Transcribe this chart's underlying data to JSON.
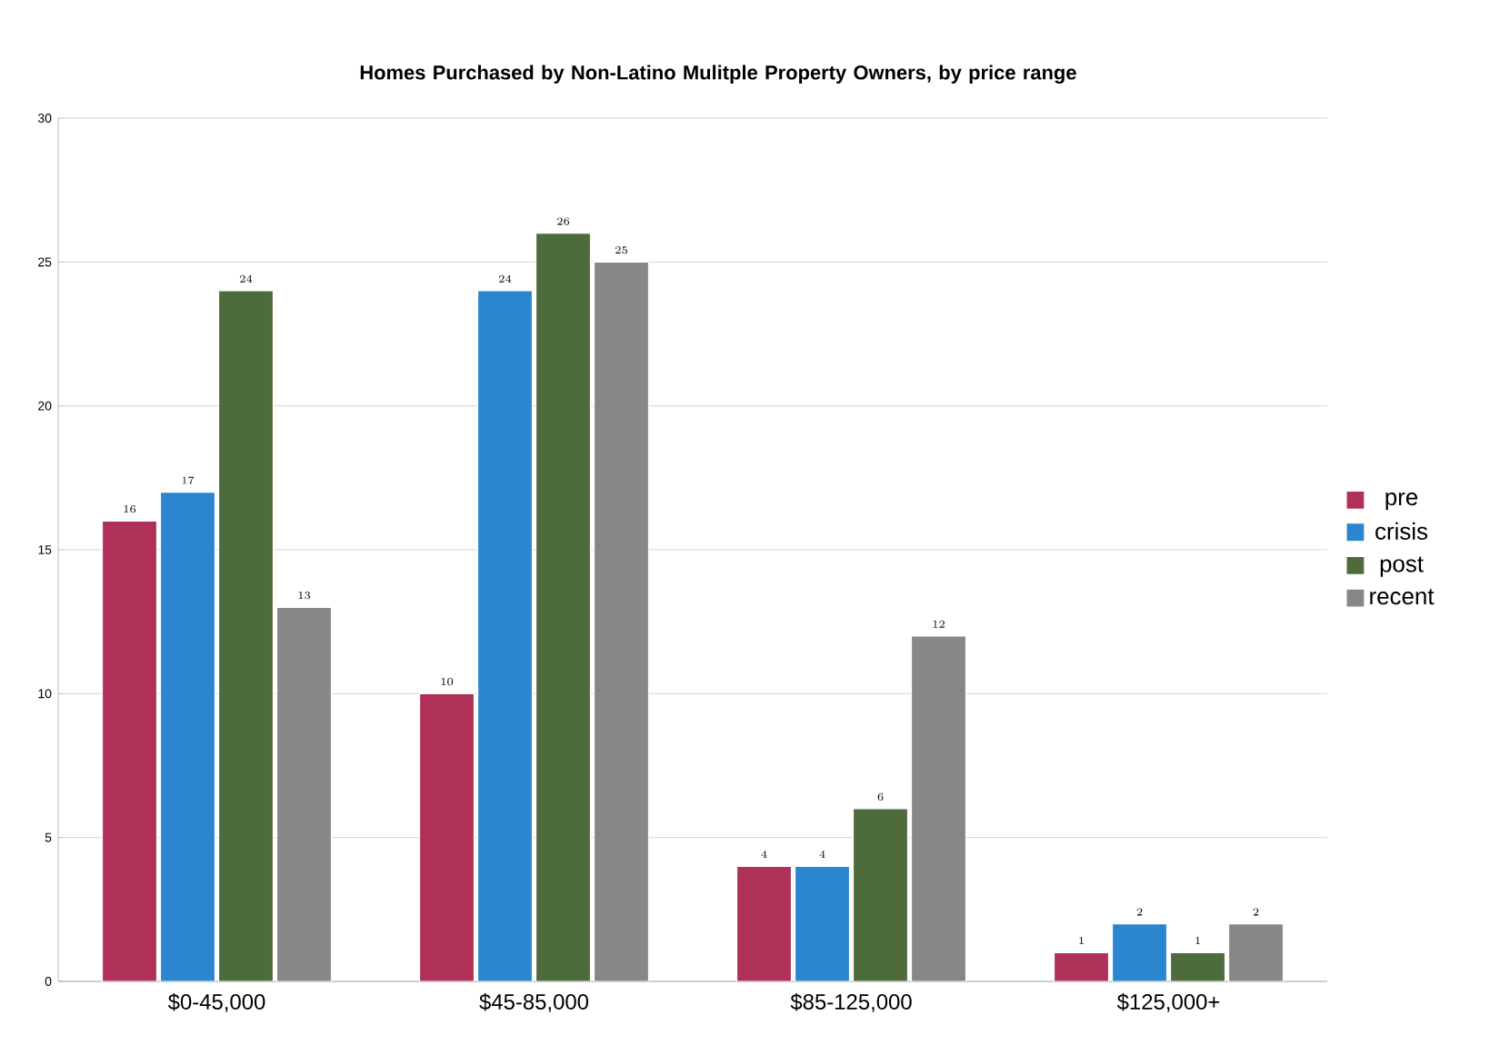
{
  "chart_data": {
    "type": "bar",
    "title": "Homes Purchased by Non-Latino Mulitple Property Owners, by price range",
    "categories": [
      "$0-45,000",
      "$45-85,000",
      "$85-125,000",
      "$125,000+"
    ],
    "series": [
      {
        "name": "pre",
        "color": "#b03158",
        "values": [
          16,
          10,
          4,
          1
        ]
      },
      {
        "name": "crisis",
        "color": "#2b86cf",
        "values": [
          17,
          24,
          4,
          2
        ]
      },
      {
        "name": "post",
        "color": "#4e6b3c",
        "values": [
          24,
          26,
          6,
          1
        ]
      },
      {
        "name": "recent",
        "color": "#878787",
        "values": [
          13,
          25,
          12,
          2
        ]
      }
    ],
    "ylim": [
      0,
      30
    ],
    "yticks": [
      0,
      5,
      10,
      15,
      20,
      25,
      30
    ],
    "grid": "y",
    "legend": "right",
    "data_labels": true
  }
}
